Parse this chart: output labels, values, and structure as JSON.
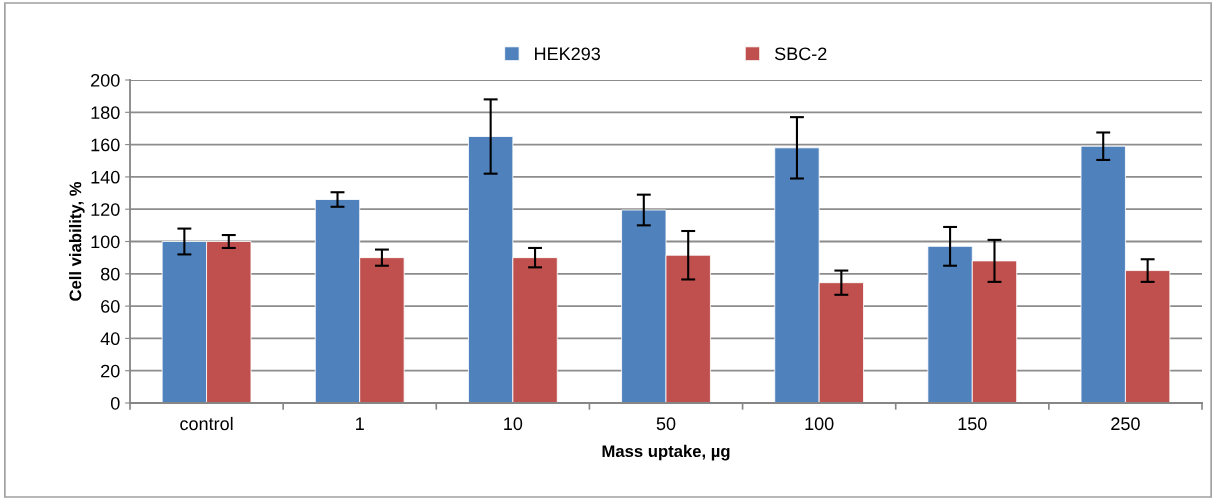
{
  "chart_data": {
    "type": "bar",
    "xlabel": "Mass uptake, µg",
    "ylabel": "Cell viability, %",
    "categories": [
      "control",
      "1",
      "10",
      "50",
      "100",
      "150",
      "250"
    ],
    "series": [
      {
        "name": "HEK293",
        "color": "#4f81bd",
        "values": [
          100,
          126,
          165,
          119.5,
          158,
          97,
          159
        ],
        "errors": [
          8,
          4.5,
          23,
          9.5,
          19,
          12,
          8.5
        ]
      },
      {
        "name": "SBC-2",
        "color": "#c0504d",
        "values": [
          100,
          90,
          90,
          91.5,
          74.5,
          88,
          82
        ],
        "errors": [
          4,
          5,
          6,
          15,
          7.5,
          13,
          7
        ]
      }
    ],
    "ylim": [
      0,
      200
    ],
    "yticks": [
      0,
      20,
      40,
      60,
      80,
      100,
      120,
      140,
      160,
      180,
      200
    ],
    "grid": "y",
    "legend": "top"
  }
}
